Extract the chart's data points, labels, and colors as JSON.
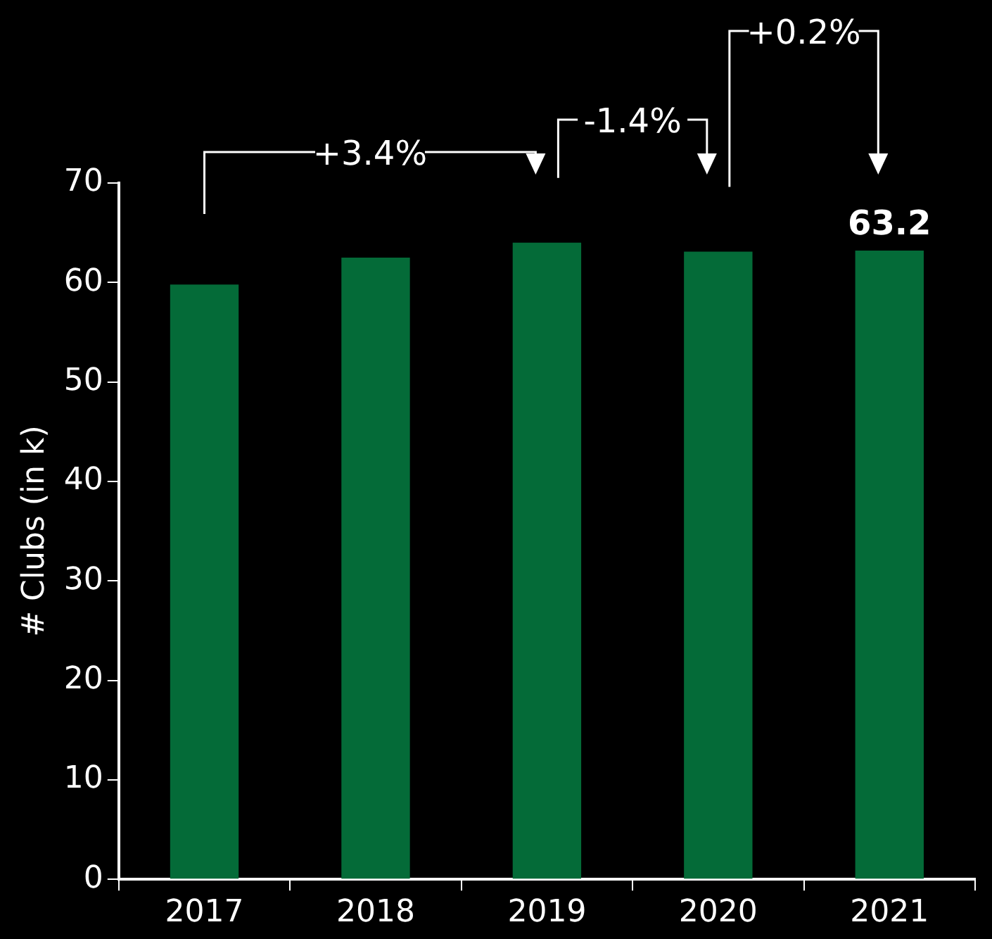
{
  "chart_data": {
    "type": "bar",
    "categories": [
      "2017",
      "2018",
      "2019",
      "2020",
      "2021"
    ],
    "values": [
      59.8,
      62.5,
      64.0,
      63.1,
      63.2
    ],
    "color": "#046b38",
    "value_labels": [
      null,
      null,
      null,
      null,
      "63.2"
    ],
    "ylabel": "# Clubs (in k)",
    "ylim": [
      0,
      70
    ],
    "yticks": [
      0,
      10,
      20,
      30,
      40,
      50,
      60,
      70
    ],
    "annotations": [
      "+3.4%",
      "-1.4%",
      "+0.2%"
    ]
  }
}
